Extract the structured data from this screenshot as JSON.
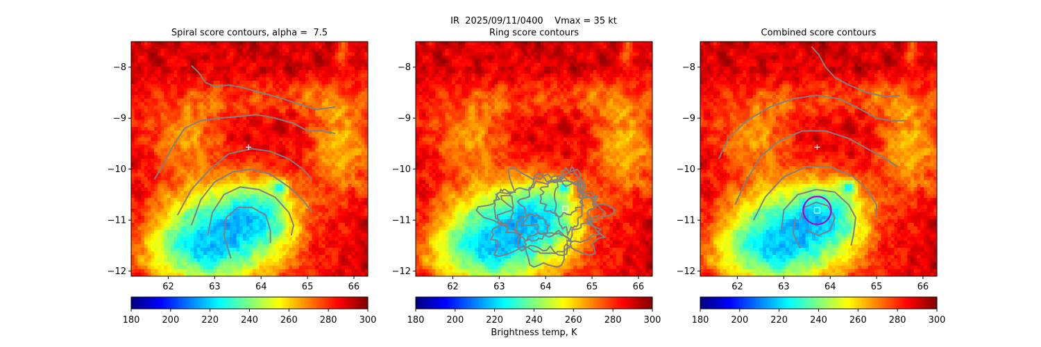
{
  "suptitle": {
    "line1": "IR  2025/09/11/0400    Vmax = 35 kt",
    "line2": "Ring score contours"
  },
  "colorbar_label": "Brightness temp, K",
  "colors": {
    "contour": "#808080",
    "combined_circle": "#b000c8",
    "marker": "#ffffff"
  },
  "colormap": "jet_r",
  "chart_data": [
    {
      "type": "heatmap",
      "title": "Spiral score contours, alpha =  7.5",
      "variable": "IR brightness temperature (K)",
      "xlim": [
        61.2,
        66.3
      ],
      "ylim": [
        -12.1,
        -7.5
      ],
      "xticks": [
        62,
        63,
        64,
        65,
        66
      ],
      "yticks": [
        -8,
        -9,
        -10,
        -11,
        -12
      ],
      "colorbar": {
        "range": [
          180,
          300
        ],
        "ticks": [
          180,
          200,
          220,
          240,
          260,
          280,
          300
        ]
      },
      "overlays": {
        "contours": "spiral score (grey arcs)",
        "first_guess_marker": {
          "symbol": "+",
          "lon": 63.73,
          "lat": -9.57
        }
      }
    },
    {
      "type": "heatmap",
      "title": "Ring score contours",
      "variable": "IR brightness temperature (K)",
      "xlim": [
        61.2,
        66.3
      ],
      "ylim": [
        -12.1,
        -7.5
      ],
      "xticks": [
        62,
        63,
        64,
        65,
        66
      ],
      "yticks": [
        -8,
        -9,
        -10,
        -11,
        -12
      ],
      "colorbar": {
        "range": [
          180,
          300
        ],
        "ticks": [
          180,
          200,
          220,
          240,
          260,
          280,
          300
        ]
      },
      "overlays": {
        "contours": "ring score (grey, dense)",
        "center_marker": {
          "symbol": "square",
          "lon": 64.43,
          "lat": -10.78
        }
      }
    },
    {
      "type": "heatmap",
      "title": "Combined score contours",
      "variable": "IR brightness temperature (K)",
      "xlim": [
        61.2,
        66.3
      ],
      "ylim": [
        -12.1,
        -7.5
      ],
      "xticks": [
        62,
        63,
        64,
        65,
        66
      ],
      "yticks": [
        -8,
        -9,
        -10,
        -11,
        -12
      ],
      "colorbar": {
        "range": [
          180,
          300
        ],
        "ticks": [
          180,
          200,
          220,
          240,
          260,
          280,
          300
        ]
      },
      "overlays": {
        "contours": "combined score (grey arcs)",
        "first_guess_marker": {
          "symbol": "+",
          "lon": 63.72,
          "lat": -9.57
        },
        "center_marker": {
          "symbol": "square",
          "lon": 63.72,
          "lat": -10.81
        },
        "center_circle": {
          "lon": 63.72,
          "lat": -10.81,
          "radius_deg": 0.3
        }
      }
    }
  ]
}
